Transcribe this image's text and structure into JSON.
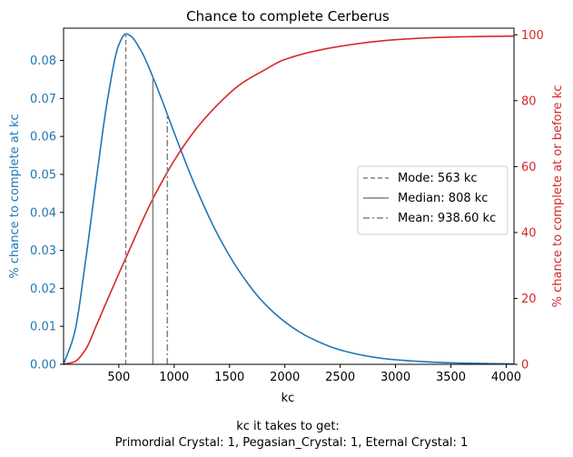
{
  "chart_data": {
    "type": "line",
    "title": "Chance to complete Cerberus",
    "xlabel": "kc",
    "ylabel_left": "% chance to complete at kc",
    "ylabel_right": "% chance to complete at or before kc",
    "xlim": [
      1,
      4070
    ],
    "ylim_left": [
      0,
      0.0885
    ],
    "ylim_right": [
      0,
      102
    ],
    "x_ticks": [
      500,
      1000,
      1500,
      2000,
      2500,
      3000,
      3500,
      4000
    ],
    "y_left_ticks": [
      "0.00",
      "0.01",
      "0.02",
      "0.03",
      "0.04",
      "0.05",
      "0.06",
      "0.07",
      "0.08"
    ],
    "y_right_ticks": [
      "0",
      "20",
      "40",
      "60",
      "80",
      "100"
    ],
    "grid": false,
    "legend_position": "center-right",
    "colors": {
      "pdf": "#1f77b4",
      "cdf": "#d62728",
      "markers": "#808080"
    },
    "series": [
      {
        "name": "",
        "axis": "left",
        "color": "#1f77b4",
        "x": [
          1,
          100,
          200,
          300,
          400,
          500,
          563,
          600,
          700,
          800,
          900,
          1000,
          1200,
          1400,
          1600,
          1800,
          2000,
          2200,
          2500,
          2800,
          3000,
          3500,
          4070
        ],
        "y": [
          0.0,
          0.0083,
          0.0273,
          0.0494,
          0.07,
          0.0841,
          0.087,
          0.0866,
          0.0826,
          0.0762,
          0.0688,
          0.061,
          0.0463,
          0.0338,
          0.024,
          0.0165,
          0.0112,
          0.0074,
          0.0038,
          0.0019,
          0.0012,
          0.0004,
          0.0001
        ]
      },
      {
        "name": "",
        "axis": "right",
        "color": "#d62728",
        "x": [
          1,
          100,
          200,
          300,
          400,
          500,
          600,
          700,
          800,
          900,
          1000,
          1200,
          1400,
          1600,
          1800,
          2000,
          2500,
          3000,
          3500,
          4070
        ],
        "y": [
          0.0,
          0.8,
          4.5,
          12.0,
          19.8,
          27.5,
          35.0,
          42.6,
          49.7,
          56.0,
          61.8,
          71.5,
          79.0,
          85.0,
          89.0,
          92.5,
          96.5,
          98.5,
          99.3,
          99.6
        ]
      }
    ],
    "vlines": [
      {
        "label": "Mode: 563 kc",
        "x": 563,
        "style": "dashed"
      },
      {
        "label": "Median: 808 kc",
        "x": 808,
        "style": "solid"
      },
      {
        "label": "Mean: 938.60 kc",
        "x": 938.6,
        "style": "dashdot"
      }
    ],
    "footer": {
      "line1": "kc it takes to get:",
      "line2": "Primordial Crystal: 1,  Pegasian_Crystal: 1,  Eternal Crystal: 1"
    }
  }
}
